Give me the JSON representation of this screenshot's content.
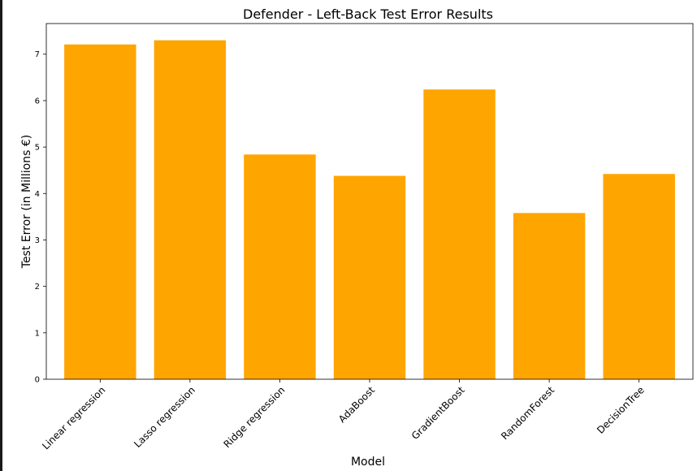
{
  "chart_data": {
    "type": "bar",
    "title": "Defender - Left-Back Test Error Results",
    "xlabel": "Model",
    "ylabel": "Test Error (in Millions €)",
    "categories": [
      "Linear regression",
      "Lasso regression",
      "Ridge regression",
      "AdaBoost",
      "GradientBoost",
      "RandomForest",
      "DecisionTree"
    ],
    "values": [
      7.21,
      7.3,
      4.84,
      4.38,
      6.24,
      3.58,
      4.42
    ],
    "yticks": [
      "0",
      "1",
      "2",
      "3",
      "4",
      "5",
      "6",
      "7"
    ],
    "ylim": [
      0,
      7.66
    ],
    "bar_color": "#ffa500",
    "grid": false,
    "legend": "none"
  }
}
